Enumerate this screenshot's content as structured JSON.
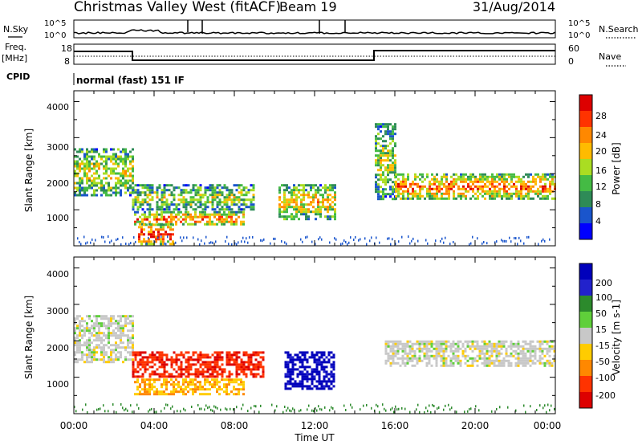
{
  "header": {
    "station": "Christmas Valley West (fitACF)",
    "beam": "Beam 19",
    "date": "31/Aug/2014"
  },
  "strips": {
    "nsky_label": "N.Sky",
    "nsky_ticks": [
      "10^5",
      "10^0"
    ],
    "nsearch_ticks": [
      "10^5",
      "10^0"
    ],
    "nsearch_label": "N.Search",
    "freq_label": "Freq.",
    "freq_unit": "[MHz]",
    "freq_ticks": [
      "18",
      "8"
    ],
    "nave_ticks": [
      "60",
      "0"
    ],
    "nave_label": "Nave",
    "cpid_label": "CPID",
    "cpid_value": "normal (fast) 151 IF"
  },
  "axes": {
    "ylabel": "Slant Range [km]",
    "yticks": [
      "4000",
      "3000",
      "2000",
      "1000"
    ],
    "xlabel": "Time UT",
    "xticks": [
      "00:00",
      "04:00",
      "08:00",
      "12:00",
      "16:00",
      "20:00",
      "00:00"
    ]
  },
  "power_scale": {
    "label": "Power [dB]",
    "ticks": [
      "28",
      "24",
      "20",
      "16",
      "12",
      "8",
      "4"
    ],
    "colors": [
      "#dd0000",
      "#ff3300",
      "#ff8800",
      "#ffbb00",
      "#aadd22",
      "#44bb44",
      "#2e8b57",
      "#1a55cc",
      "#0000ff"
    ]
  },
  "velocity_scale": {
    "label": "Velocity [m s-1]",
    "ticks": [
      "200",
      "100",
      "50",
      "15",
      "-15",
      "-50",
      "-100",
      "-200"
    ],
    "colors": [
      "#0000bb",
      "#2222cc",
      "#2c8a2c",
      "#5fcf3a",
      "#c8c8c8",
      "#ffcc00",
      "#ff8800",
      "#ff3300",
      "#dd0000"
    ]
  },
  "chart_data": [
    {
      "type": "heatmap",
      "name": "power",
      "x_range_hours": [
        0,
        24
      ],
      "ylim": [
        180,
        4500
      ],
      "ylabel": "Slant Range [km]",
      "xlabel": "Time UT",
      "colorbar": "Power [dB]",
      "colorbar_range": [
        0,
        30
      ],
      "bands": [
        {
          "t0": 0.0,
          "t1": 2.9,
          "r0": 1600,
          "r1": 2900,
          "level": 16
        },
        {
          "t0": 2.9,
          "t1": 9.0,
          "r0": 1200,
          "r1": 1900,
          "level": 14
        },
        {
          "t0": 3.0,
          "t1": 8.5,
          "r0": 780,
          "r1": 1150,
          "level": 22
        },
        {
          "t0": 3.2,
          "t1": 5.0,
          "r0": 250,
          "r1": 800,
          "level": 26
        },
        {
          "t0": 10.2,
          "t1": 13.0,
          "r0": 950,
          "r1": 1900,
          "level": 18
        },
        {
          "t0": 15.0,
          "t1": 16.0,
          "r0": 1500,
          "r1": 3600,
          "level": 14
        },
        {
          "t0": 16.0,
          "t1": 24.0,
          "r0": 1500,
          "r1": 2200,
          "level": 22
        }
      ]
    },
    {
      "type": "heatmap",
      "name": "velocity",
      "x_range_hours": [
        0,
        24
      ],
      "ylim": [
        180,
        4500
      ],
      "ylabel": "Slant Range [km]",
      "xlabel": "Time UT",
      "colorbar": "Velocity [m s-1]",
      "colorbar_range": [
        -200,
        200
      ],
      "bands": [
        {
          "t0": 0.0,
          "t1": 2.9,
          "r0": 1600,
          "r1": 2900,
          "level": 0
        },
        {
          "t0": 2.9,
          "t1": 9.5,
          "r0": 1200,
          "r1": 1900,
          "level": -150
        },
        {
          "t0": 3.0,
          "t1": 8.5,
          "r0": 700,
          "r1": 1150,
          "level": -60
        },
        {
          "t0": 10.5,
          "t1": 13.0,
          "r0": 900,
          "r1": 1900,
          "level": 180
        },
        {
          "t0": 15.5,
          "t1": 24.0,
          "r0": 1500,
          "r1": 2200,
          "level": 0
        }
      ]
    }
  ]
}
